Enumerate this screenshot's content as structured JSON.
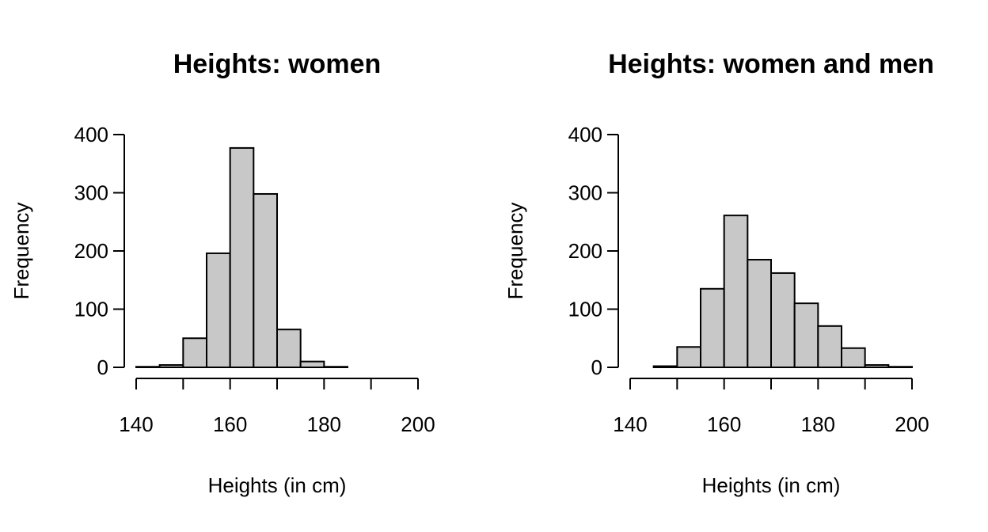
{
  "chart_data": [
    {
      "type": "bar",
      "title": "Heights: women",
      "xlabel": "Heights (in cm)",
      "ylabel": "Frequency",
      "bin_edges": [
        140,
        145,
        150,
        155,
        160,
        165,
        170,
        175,
        180,
        185
      ],
      "values": [
        1,
        4,
        50,
        196,
        377,
        298,
        65,
        10,
        1
      ],
      "xlim": [
        140,
        200
      ],
      "ylim": [
        0,
        400
      ],
      "xticks": [
        140,
        160,
        180,
        200
      ],
      "xminorticks": [
        140,
        150,
        160,
        170,
        180,
        190,
        200
      ],
      "yticks": [
        0,
        100,
        200,
        300,
        400
      ],
      "bar_color": "#c8c8c8",
      "grid": false
    },
    {
      "type": "bar",
      "title": "Heights: women and men",
      "xlabel": "Heights (in cm)",
      "ylabel": "Frequency",
      "bin_edges": [
        145,
        150,
        155,
        160,
        165,
        170,
        175,
        180,
        185,
        190,
        195,
        200
      ],
      "values": [
        2,
        35,
        135,
        261,
        185,
        162,
        110,
        71,
        33,
        4,
        1
      ],
      "xlim": [
        140,
        200
      ],
      "ylim": [
        0,
        400
      ],
      "xticks": [
        140,
        160,
        180,
        200
      ],
      "xminorticks": [
        140,
        150,
        160,
        170,
        180,
        190,
        200
      ],
      "yticks": [
        0,
        100,
        200,
        300,
        400
      ],
      "bar_color": "#c8c8c8",
      "grid": false
    }
  ]
}
